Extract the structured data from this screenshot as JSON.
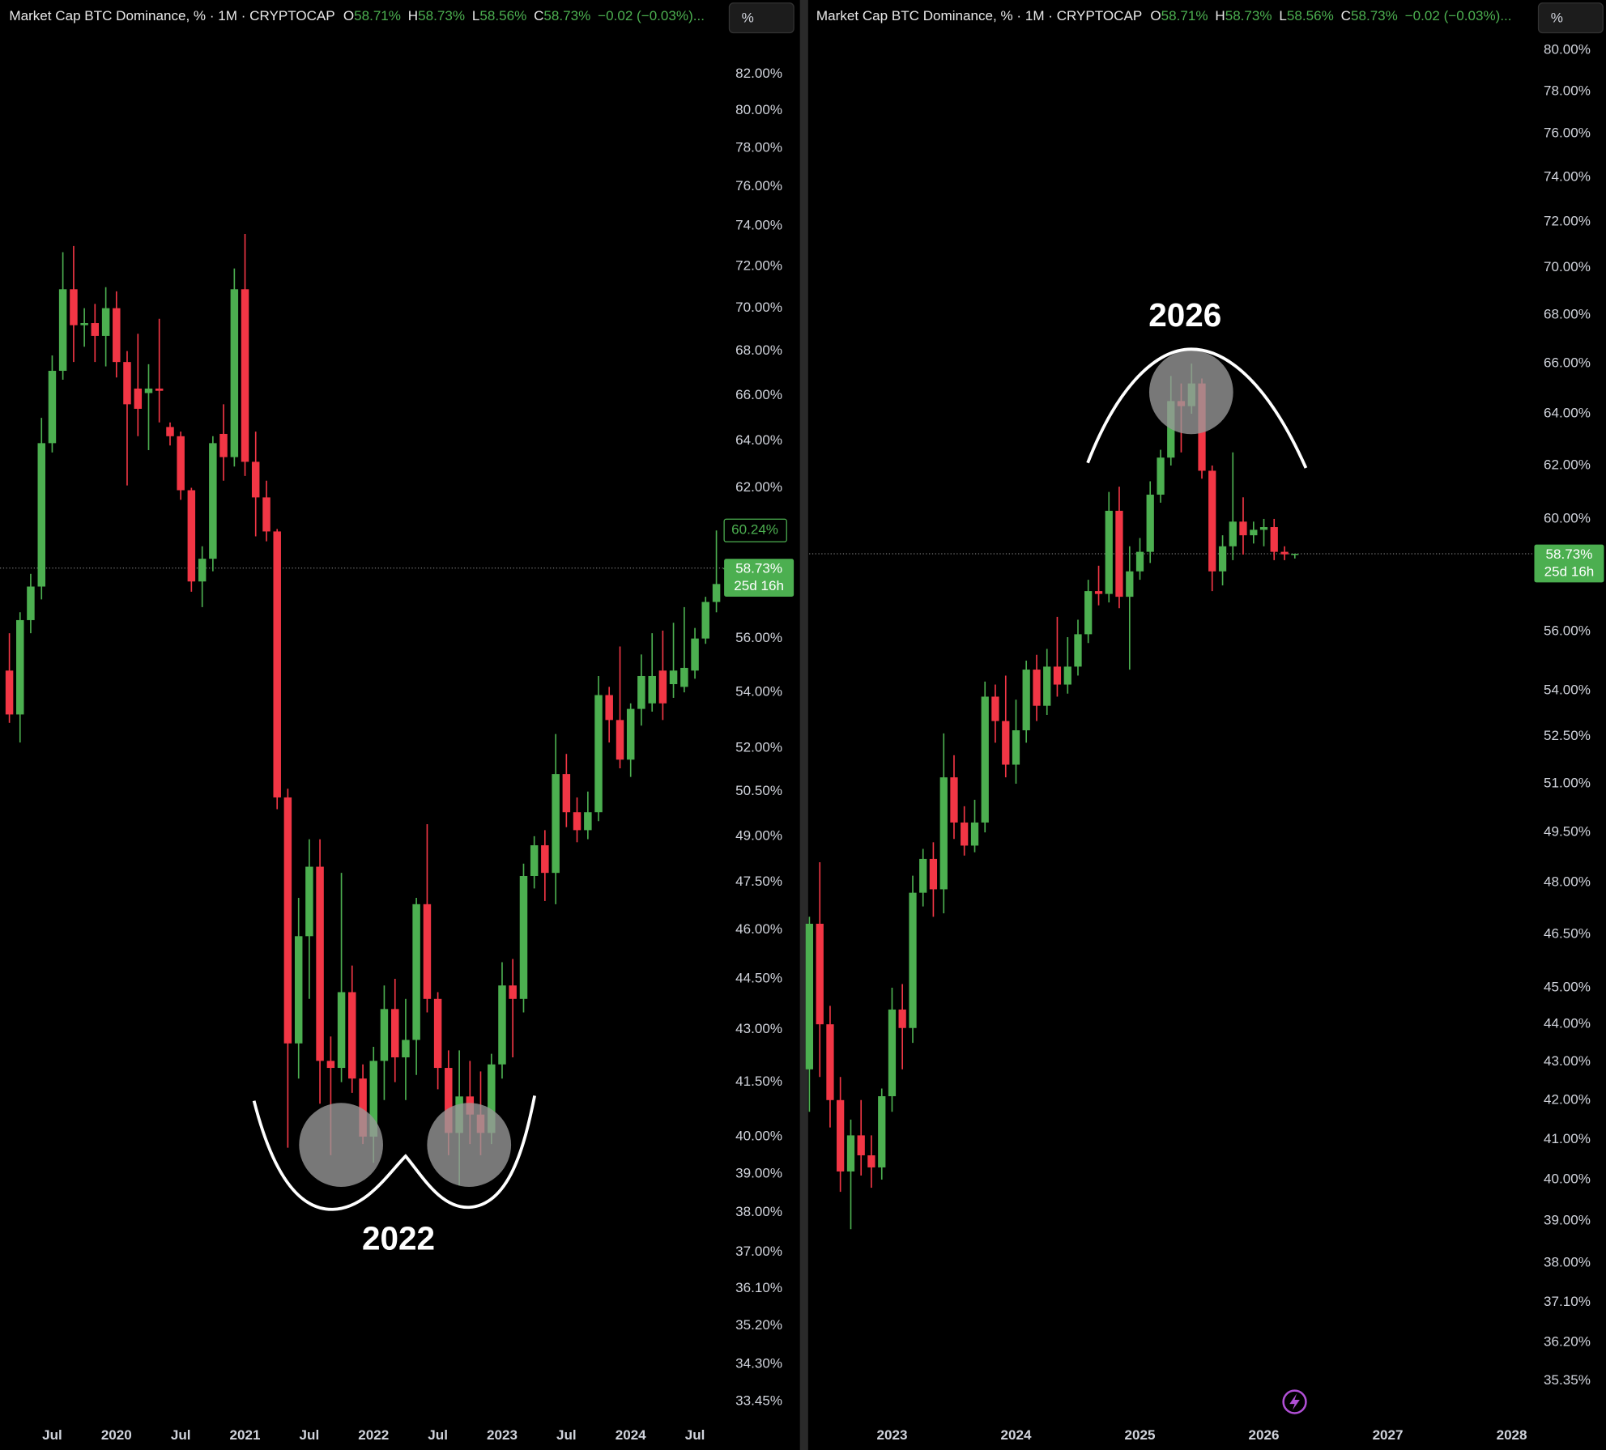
{
  "chart_data": [
    {
      "type": "candlestick",
      "title": "Market Cap BTC Dominance, % · 1M · CRYPTOCAP",
      "ohlc_keys": [
        "O",
        "H",
        "L",
        "C"
      ],
      "ohlc_labels": [
        "58.71%",
        "58.73%",
        "58.56%",
        "58.73%"
      ],
      "change_label": "−0.02 (−0.03%)...",
      "scale_button": "%",
      "log_scale": true,
      "colors": {
        "up": "#4caf50",
        "down": "#f23645"
      },
      "x": [
        2019.167,
        2019.25,
        2019.333,
        2019.417,
        2019.5,
        2019.583,
        2019.667,
        2019.75,
        2019.833,
        2019.917,
        2020,
        2020.083,
        2020.167,
        2020.25,
        2020.333,
        2020.417,
        2020.5,
        2020.583,
        2020.667,
        2020.75,
        2020.833,
        2020.917,
        2021,
        2021.083,
        2021.167,
        2021.25,
        2021.333,
        2021.417,
        2021.5,
        2021.583,
        2021.667,
        2021.75,
        2021.833,
        2021.917,
        2022,
        2022.083,
        2022.167,
        2022.25,
        2022.333,
        2022.417,
        2022.5,
        2022.583,
        2022.667,
        2022.75,
        2022.833,
        2022.917,
        2023,
        2023.083,
        2023.167,
        2023.25,
        2023.333,
        2023.417,
        2023.5,
        2023.583,
        2023.667,
        2023.75,
        2023.833,
        2023.917,
        2024,
        2024.083,
        2024.167,
        2024.25,
        2024.333,
        2024.417,
        2024.5,
        2024.583,
        2024.667,
        2024.75
      ],
      "open": [
        54.8,
        53.2,
        56.7,
        58.0,
        63.9,
        67.1,
        70.9,
        69.2,
        69.3,
        68.7,
        70.0,
        67.5,
        66.3,
        66.1,
        66.3,
        64.6,
        64.2,
        61.9,
        58.2,
        59.1,
        64.3,
        63.3,
        70.9,
        63.1,
        61.6,
        60.2,
        50.3,
        42.6,
        45.8,
        48.0,
        42.1,
        41.9,
        44.1,
        41.6,
        40.0,
        42.1,
        43.6,
        42.2,
        42.7,
        46.8,
        43.9,
        41.9,
        40.1,
        41.1,
        40.6,
        40.1,
        42.0,
        44.3,
        43.9,
        47.7,
        48.7,
        47.8,
        51.1,
        49.8,
        49.2,
        49.8,
        53.9,
        53.0,
        51.6,
        53.4,
        53.6,
        54.8,
        54.3,
        54.2,
        54.8,
        56.0,
        57.4,
        58.71
      ],
      "high": [
        56.2,
        57.0,
        58.5,
        65.0,
        67.8,
        72.7,
        73.0,
        70.0,
        70.2,
        71.0,
        70.8,
        68.0,
        68.8,
        67.4,
        69.5,
        64.8,
        64.4,
        62.0,
        59.6,
        64.2,
        65.6,
        71.9,
        73.6,
        64.4,
        62.3,
        60.3,
        50.6,
        47.0,
        48.9,
        48.9,
        42.8,
        47.8,
        44.9,
        42.0,
        42.5,
        44.3,
        44.5,
        43.9,
        47.0,
        49.4,
        44.1,
        42.4,
        42.4,
        42.1,
        41.8,
        42.3,
        45.0,
        45.1,
        48.1,
        49.0,
        49.2,
        52.5,
        51.8,
        50.3,
        50.5,
        54.6,
        54.2,
        55.7,
        53.6,
        55.4,
        56.2,
        56.3,
        56.6,
        57.2,
        56.4,
        57.6,
        60.24,
        58.73
      ],
      "low": [
        52.9,
        52.2,
        56.2,
        57.5,
        63.5,
        66.7,
        67.5,
        68.2,
        67.5,
        67.3,
        66.8,
        62.1,
        64.2,
        63.6,
        64.8,
        63.8,
        61.5,
        57.8,
        57.2,
        58.6,
        62.3,
        62.9,
        62.5,
        60.0,
        59.8,
        49.9,
        39.7,
        41.6,
        43.9,
        40.9,
        39.5,
        41.5,
        41.2,
        39.8,
        39.3,
        41.0,
        41.5,
        41.0,
        41.7,
        43.5,
        41.3,
        39.5,
        38.7,
        39.8,
        39.5,
        39.8,
        41.6,
        42.2,
        43.5,
        47.3,
        46.9,
        46.8,
        49.3,
        48.8,
        48.9,
        49.5,
        52.2,
        51.3,
        51.0,
        52.8,
        53.3,
        53.0,
        53.8,
        54.0,
        54.5,
        55.8,
        57.0,
        58.56
      ],
      "close": [
        53.2,
        56.7,
        58.0,
        63.9,
        67.1,
        70.9,
        69.2,
        69.3,
        68.7,
        70.0,
        67.5,
        65.6,
        65.4,
        66.3,
        66.2,
        64.2,
        61.9,
        58.2,
        59.1,
        63.9,
        63.3,
        70.9,
        63.1,
        61.6,
        60.2,
        50.3,
        42.6,
        45.8,
        48.0,
        42.1,
        41.9,
        44.1,
        41.6,
        40.0,
        42.1,
        43.6,
        42.2,
        42.7,
        46.8,
        43.9,
        41.9,
        40.1,
        41.1,
        40.6,
        40.1,
        42.0,
        44.3,
        43.9,
        47.7,
        48.7,
        47.8,
        51.1,
        49.8,
        49.2,
        49.8,
        53.9,
        53.0,
        51.6,
        53.4,
        54.6,
        54.6,
        53.6,
        54.8,
        54.9,
        56.0,
        57.4,
        58.1,
        58.73
      ],
      "xlim": [
        2019.094,
        2024.767
      ],
      "xticks": [
        {
          "value": 2019.5,
          "label": "Jul"
        },
        2020,
        {
          "value": 2020.5,
          "label": "Jul"
        },
        2021,
        {
          "value": 2021.5,
          "label": "Jul"
        },
        2022,
        {
          "value": 2022.5,
          "label": "Jul"
        },
        2023,
        {
          "value": 2023.5,
          "label": "Jul"
        },
        2024,
        {
          "value": 2024.5,
          "label": "Jul"
        }
      ],
      "ylim": [
        33.07,
        86.2
      ],
      "yticks": [
        {
          "value": 82,
          "label": "82.00%"
        },
        {
          "value": 80,
          "label": "80.00%"
        },
        {
          "value": 78,
          "label": "78.00%"
        },
        {
          "value": 76,
          "label": "76.00%"
        },
        {
          "value": 74,
          "label": "74.00%"
        },
        {
          "value": 72,
          "label": "72.00%"
        },
        {
          "value": 70,
          "label": "70.00%"
        },
        {
          "value": 68,
          "label": "68.00%"
        },
        {
          "value": 66,
          "label": "66.00%"
        },
        {
          "value": 64,
          "label": "64.00%"
        },
        {
          "value": 62,
          "label": "62.00%"
        },
        {
          "value": 56,
          "label": "56.00%"
        },
        {
          "value": 54,
          "label": "54.00%"
        },
        {
          "value": 52,
          "label": "52.00%"
        },
        {
          "value": 50.5,
          "label": "50.50%"
        },
        {
          "value": 49,
          "label": "49.00%"
        },
        {
          "value": 47.5,
          "label": "47.50%"
        },
        {
          "value": 46,
          "label": "46.00%"
        },
        {
          "value": 44.5,
          "label": "44.50%"
        },
        {
          "value": 43,
          "label": "43.00%"
        },
        {
          "value": 41.5,
          "label": "41.50%"
        },
        {
          "value": 40,
          "label": "40.00%"
        },
        {
          "value": 39,
          "label": "39.00%"
        },
        {
          "value": 38,
          "label": "38.00%"
        },
        {
          "value": 37,
          "label": "37.00%"
        },
        {
          "value": 36.1,
          "label": "36.10%"
        },
        {
          "value": 35.2,
          "label": "35.20%"
        },
        {
          "value": 34.3,
          "label": "34.30%"
        },
        {
          "value": 33.45,
          "label": "33.45%"
        }
      ],
      "last_price": {
        "value": 58.73,
        "label": "58.73%"
      },
      "countdown": "25d 16h",
      "high_marker": {
        "value": 60.24,
        "label": "60.24%"
      },
      "annotation": "2022"
    },
    {
      "type": "candlestick",
      "title": "Market Cap BTC Dominance, % · 1M · CRYPTOCAP",
      "ohlc_keys": [
        "O",
        "H",
        "L",
        "C"
      ],
      "ohlc_labels": [
        "58.71%",
        "58.73%",
        "58.56%",
        "58.73%"
      ],
      "change_label": "−0.02 (−0.03%)...",
      "scale_button": "%",
      "log_scale": true,
      "colors": {
        "up": "#4caf50",
        "down": "#f23645"
      },
      "x": [
        2022.333,
        2022.417,
        2022.5,
        2022.583,
        2022.667,
        2022.75,
        2022.833,
        2022.917,
        2023,
        2023.083,
        2023.167,
        2023.25,
        2023.333,
        2023.417,
        2023.5,
        2023.583,
        2023.667,
        2023.75,
        2023.833,
        2023.917,
        2024,
        2024.083,
        2024.167,
        2024.25,
        2024.333,
        2024.417,
        2024.5,
        2024.583,
        2024.667,
        2024.75,
        2024.833,
        2024.917,
        2025,
        2025.083,
        2025.167,
        2025.25,
        2025.333,
        2025.417,
        2025.5,
        2025.583,
        2025.667,
        2025.75,
        2025.833,
        2025.917,
        2026,
        2026.083,
        2026.167,
        2026.25
      ],
      "open": [
        42.8,
        46.8,
        44.0,
        42.0,
        40.2,
        41.1,
        40.6,
        40.3,
        42.1,
        44.4,
        43.9,
        47.7,
        48.7,
        47.8,
        51.2,
        49.8,
        49.1,
        49.8,
        53.8,
        53.0,
        51.6,
        52.7,
        54.7,
        53.5,
        54.8,
        54.2,
        54.8,
        55.9,
        57.4,
        57.3,
        60.3,
        57.2,
        58.1,
        58.8,
        60.9,
        62.3,
        64.5,
        64.3,
        65.2,
        61.8,
        58.1,
        59.0,
        59.9,
        59.4,
        59.6,
        59.7,
        58.8,
        58.71
      ],
      "high": [
        47.0,
        48.6,
        44.5,
        42.6,
        41.5,
        42.0,
        41.1,
        42.3,
        45.0,
        45.1,
        48.2,
        49.0,
        49.2,
        52.6,
        51.9,
        50.3,
        50.5,
        54.3,
        54.2,
        54.5,
        53.7,
        55.0,
        55.2,
        55.4,
        56.5,
        55.8,
        56.4,
        57.8,
        58.3,
        61.0,
        61.2,
        59.0,
        59.3,
        61.4,
        62.6,
        65.5,
        65.2,
        66.0,
        65.4,
        62.0,
        59.4,
        62.5,
        60.8,
        59.9,
        60.0,
        60.0,
        59.0,
        58.73
      ],
      "low": [
        41.7,
        42.6,
        41.3,
        39.7,
        38.8,
        40.1,
        39.8,
        40.0,
        41.7,
        42.8,
        43.5,
        47.3,
        47.0,
        47.1,
        49.3,
        48.8,
        48.9,
        49.5,
        52.3,
        51.2,
        51.0,
        52.3,
        53.0,
        53.2,
        53.8,
        53.9,
        54.5,
        55.6,
        56.9,
        57.0,
        56.8,
        54.7,
        57.8,
        58.4,
        60.6,
        62.0,
        62.5,
        64.0,
        61.5,
        57.4,
        57.6,
        58.5,
        58.7,
        59.1,
        59.0,
        58.5,
        58.5,
        58.56
      ],
      "close": [
        46.8,
        44.0,
        42.0,
        40.2,
        41.1,
        40.6,
        40.3,
        42.1,
        44.4,
        43.9,
        47.7,
        48.7,
        47.8,
        51.2,
        49.8,
        49.1,
        49.8,
        53.8,
        53.0,
        51.6,
        52.7,
        54.7,
        53.5,
        54.8,
        54.2,
        54.8,
        55.9,
        57.4,
        57.3,
        60.3,
        57.2,
        58.1,
        58.8,
        60.9,
        62.3,
        64.5,
        64.3,
        65.2,
        61.8,
        58.1,
        59.0,
        59.9,
        59.4,
        59.6,
        59.7,
        58.8,
        58.71,
        58.73
      ],
      "xlim": [
        2022.331,
        2028.174
      ],
      "xticks": [
        2023,
        2024,
        2025,
        2026,
        2027,
        2028
      ],
      "ylim": [
        34.55,
        82.5
      ],
      "yticks": [
        {
          "value": 80,
          "label": "80.00%"
        },
        {
          "value": 78,
          "label": "78.00%"
        },
        {
          "value": 76,
          "label": "76.00%"
        },
        {
          "value": 74,
          "label": "74.00%"
        },
        {
          "value": 72,
          "label": "72.00%"
        },
        {
          "value": 70,
          "label": "70.00%"
        },
        {
          "value": 68,
          "label": "68.00%"
        },
        {
          "value": 66,
          "label": "66.00%"
        },
        {
          "value": 64,
          "label": "64.00%"
        },
        {
          "value": 62,
          "label": "62.00%"
        },
        {
          "value": 60,
          "label": "60.00%"
        },
        {
          "value": 56,
          "label": "56.00%"
        },
        {
          "value": 54,
          "label": "54.00%"
        },
        {
          "value": 52.5,
          "label": "52.50%"
        },
        {
          "value": 51,
          "label": "51.00%"
        },
        {
          "value": 49.5,
          "label": "49.50%"
        },
        {
          "value": 48,
          "label": "48.00%"
        },
        {
          "value": 46.5,
          "label": "46.50%"
        },
        {
          "value": 45,
          "label": "45.00%"
        },
        {
          "value": 44,
          "label": "44.00%"
        },
        {
          "value": 43,
          "label": "43.00%"
        },
        {
          "value": 42,
          "label": "42.00%"
        },
        {
          "value": 41,
          "label": "41.00%"
        },
        {
          "value": 40,
          "label": "40.00%"
        },
        {
          "value": 39,
          "label": "39.00%"
        },
        {
          "value": 38,
          "label": "38.00%"
        },
        {
          "value": 37.1,
          "label": "37.10%"
        },
        {
          "value": 36.2,
          "label": "36.20%"
        },
        {
          "value": 35.35,
          "label": "35.35%"
        }
      ],
      "last_price": {
        "value": 58.73,
        "label": "58.73%"
      },
      "countdown": "25d 16h",
      "annotation": "2026"
    }
  ]
}
